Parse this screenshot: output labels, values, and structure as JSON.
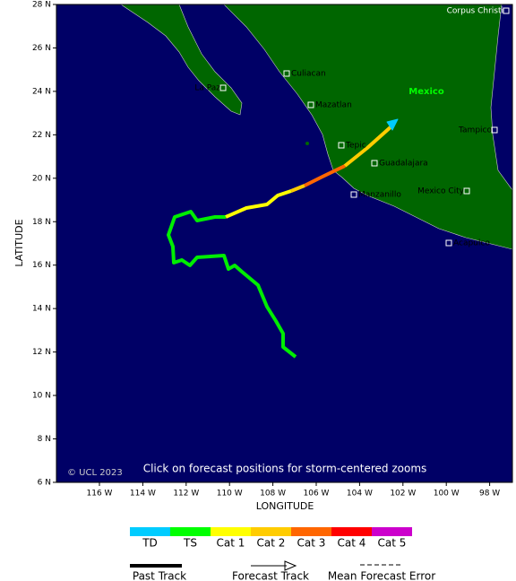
{
  "map": {
    "x_axis_title": "LONGITUDE",
    "y_axis_title": "LATITUDE",
    "x_ticks": [
      "116 W",
      "114 W",
      "112 W",
      "110 W",
      "108 W",
      "106 W",
      "104 W",
      "102 W",
      "100 W",
      "98 W"
    ],
    "y_ticks": [
      "28 N",
      "26 N",
      "24 N",
      "22 N",
      "20 N",
      "18 N",
      "16 N",
      "14 N",
      "12 N",
      "10 N",
      "8 N",
      "6 N"
    ],
    "places": [
      "Corpus Christi",
      "Culiacan",
      "La Paz",
      "Mazatlan",
      "Tampico",
      "Tepic",
      "Guadalajara",
      "Mexico City",
      "Manzanillo",
      "Acapulco"
    ],
    "region_label": "Mexico",
    "copyright": "© UCL 2023",
    "instruction": "Click on forecast positions for storm-centered zooms"
  },
  "legend": {
    "categories": [
      {
        "label": "TD",
        "color": "#00ccff"
      },
      {
        "label": "TS",
        "color": "#00ff00"
      },
      {
        "label": "Cat 1",
        "color": "#ffff00"
      },
      {
        "label": "Cat 2",
        "color": "#ffcc00"
      },
      {
        "label": "Cat 3",
        "color": "#ff6600"
      },
      {
        "label": "Cat 4",
        "color": "#ff0000"
      },
      {
        "label": "Cat 5",
        "color": "#cc00cc"
      }
    ],
    "track_types": [
      "Past Track",
      "Forecast Track",
      "Mean Forecast Error"
    ]
  }
}
